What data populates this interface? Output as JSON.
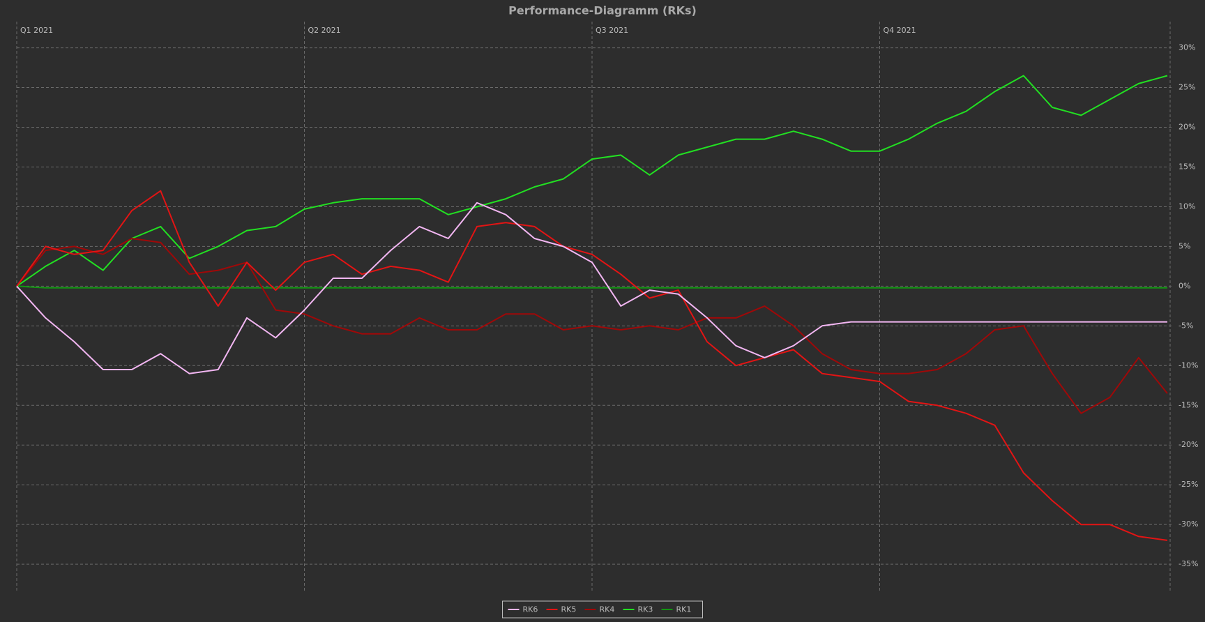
{
  "chart_data": {
    "type": "line",
    "title": "Performance-Diagramm (RKs)",
    "x": [
      0,
      0.1,
      0.2,
      0.3,
      0.4,
      0.5,
      0.6,
      0.7,
      0.8,
      0.9,
      1,
      1.1,
      1.2,
      1.3,
      1.4,
      1.5,
      1.6,
      1.7,
      1.8,
      1.9,
      2,
      2.1,
      2.2,
      2.3,
      2.4,
      2.5,
      2.6,
      2.7,
      2.8,
      2.9,
      3,
      3.1,
      3.2,
      3.3,
      3.4,
      3.5,
      3.6,
      3.7,
      3.8,
      3.9,
      4
    ],
    "xlim": [
      0,
      4
    ],
    "xticks": [
      {
        "value": 0,
        "label": "Q1 2021"
      },
      {
        "value": 1,
        "label": "Q2 2021"
      },
      {
        "value": 2,
        "label": "Q3 2021"
      },
      {
        "value": 3,
        "label": "Q4 2021"
      }
    ],
    "ylim": [
      -38.5,
      33.3
    ],
    "yticks": [
      {
        "value": 30,
        "label": "30%"
      },
      {
        "value": 25,
        "label": "25%"
      },
      {
        "value": 20,
        "label": "20%"
      },
      {
        "value": 15,
        "label": "15%"
      },
      {
        "value": 10,
        "label": "10%"
      },
      {
        "value": 5,
        "label": "5%"
      },
      {
        "value": 0,
        "label": "0%"
      },
      {
        "value": -5,
        "label": "-5%"
      },
      {
        "value": -10,
        "label": "-10%"
      },
      {
        "value": -15,
        "label": "-15%"
      },
      {
        "value": -20,
        "label": "-20%"
      },
      {
        "value": -25,
        "label": "-25%"
      },
      {
        "value": -30,
        "label": "-30%"
      },
      {
        "value": -35,
        "label": "-35%"
      }
    ],
    "grid": true,
    "legend": "bottom",
    "series": [
      {
        "name": "RK6",
        "color": "#f2b6f2",
        "values": [
          0,
          -4,
          -7,
          -10.5,
          -10.5,
          -8.5,
          -11,
          -10.5,
          -4,
          -6.5,
          -3,
          1,
          1,
          4.5,
          7.5,
          6,
          10.5,
          9,
          6,
          5,
          3,
          -2.5,
          -0.5,
          -1,
          -4,
          -7.5,
          -9,
          -7.5,
          -5,
          -4.5,
          -4.5,
          -4.5,
          -4.5,
          -4.5,
          -4.5,
          -4.5,
          -4.5,
          -4.5,
          -4.5,
          -4.5,
          -4.5
        ]
      },
      {
        "name": "RK5",
        "color": "#e31414",
        "values": [
          0,
          5,
          4,
          4.5,
          9.5,
          12,
          3,
          -2.5,
          3,
          -0.5,
          3,
          4,
          1.5,
          2.5,
          2,
          0.5,
          7.5,
          8,
          7.5,
          5,
          4,
          1.5,
          -1.5,
          -0.5,
          -7,
          -10,
          -9,
          -8,
          -11,
          -11.5,
          -12,
          -14.5,
          -15,
          -16,
          -17.5,
          -23.5,
          -27,
          -30,
          -30,
          -31.5,
          -32
        ]
      },
      {
        "name": "RK4",
        "color": "#a00808",
        "values": [
          0,
          4.5,
          5,
          4,
          6,
          5.5,
          1.5,
          2,
          3,
          -3,
          -3.5,
          -5,
          -6,
          -6,
          -4,
          -5.5,
          -5.5,
          -3.5,
          -3.5,
          -5.5,
          -5,
          -5.5,
          -5,
          -5.5,
          -4,
          -4,
          -2.5,
          -5,
          -8.5,
          -10.5,
          -11,
          -11,
          -10.5,
          -8.5,
          -5.5,
          -5,
          -11,
          -16,
          -14,
          -9,
          -13.5
        ]
      },
      {
        "name": "RK3",
        "color": "#22e022",
        "values": [
          0,
          2.5,
          4.5,
          2,
          6,
          7.5,
          3.5,
          5,
          7,
          7.5,
          9.7,
          10.5,
          11,
          11,
          11,
          9,
          10,
          11,
          12.5,
          13.5,
          16,
          16.5,
          14,
          16.5,
          17.5,
          18.5,
          18.5,
          19.5,
          18.5,
          17,
          17,
          18.5,
          20.5,
          22,
          24.5,
          26.5,
          22.5,
          21.5,
          23.5,
          25.5,
          26.5
        ]
      },
      {
        "name": "RK1",
        "color": "#129612",
        "values": [
          0,
          -0.2,
          -0.2,
          -0.2,
          -0.2,
          -0.2,
          -0.2,
          -0.2,
          -0.2,
          -0.2,
          -0.2,
          -0.2,
          -0.2,
          -0.2,
          -0.2,
          -0.2,
          -0.2,
          -0.2,
          -0.2,
          -0.2,
          -0.2,
          -0.2,
          -0.2,
          -0.2,
          -0.2,
          -0.2,
          -0.2,
          -0.2,
          -0.2,
          -0.2,
          -0.2,
          -0.2,
          -0.2,
          -0.2,
          -0.2,
          -0.2,
          -0.2,
          -0.2,
          -0.2,
          -0.2,
          -0.2
        ]
      }
    ]
  }
}
